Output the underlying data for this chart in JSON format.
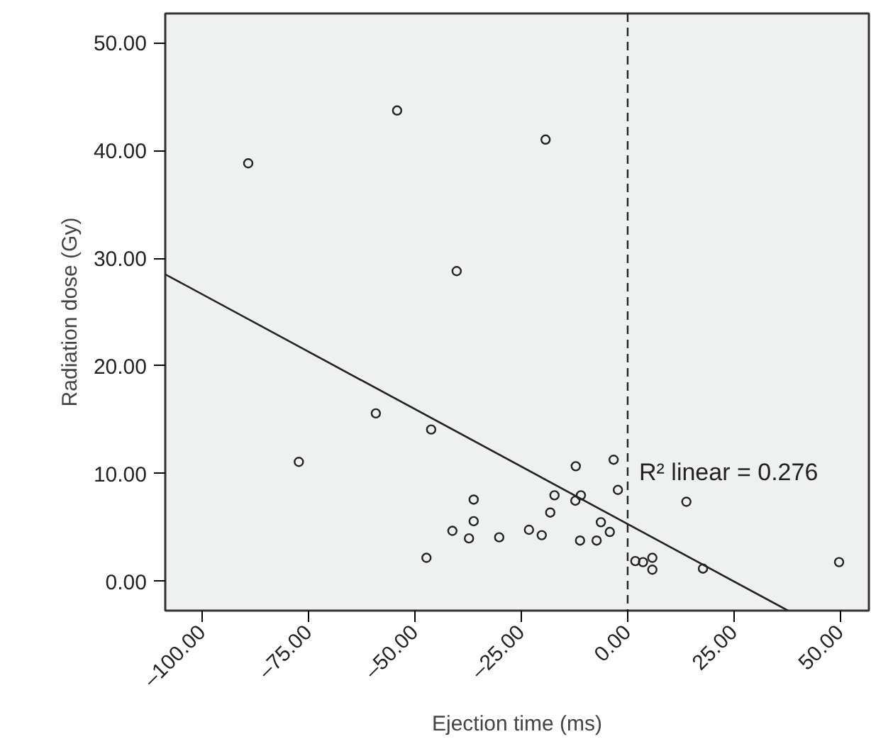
{
  "chart_data": {
    "type": "scatter",
    "xlabel": "Ejection time (ms)",
    "ylabel": "Radiation dose (Gy)",
    "xlim": [
      -108.7,
      56.7
    ],
    "ylim": [
      -2.7,
      52.7
    ],
    "xticks": [
      {
        "value": -100,
        "label": "–100.00"
      },
      {
        "value": -75,
        "label": "–75.00"
      },
      {
        "value": -50,
        "label": "–50.00"
      },
      {
        "value": -25,
        "label": "–25.00"
      },
      {
        "value": 0,
        "label": "0.00"
      },
      {
        "value": 25,
        "label": "25.00"
      },
      {
        "value": 50,
        "label": "50.00"
      }
    ],
    "yticks": [
      {
        "value": 0,
        "label": "0.00"
      },
      {
        "value": 10,
        "label": "10.00"
      },
      {
        "value": 20,
        "label": "20.00"
      },
      {
        "value": 30,
        "label": "30.00"
      },
      {
        "value": 40,
        "label": "40.00"
      },
      {
        "value": 50,
        "label": "50.00"
      }
    ],
    "grid": false,
    "marker": "circle",
    "series": [
      {
        "color": "#222222",
        "x": [
          -89.2,
          -54.2,
          -40.2,
          -19.3,
          -77.3,
          -59.2,
          -46.2,
          -47.3,
          -41.2,
          -37.3,
          -36.2,
          -36.2,
          -30.2,
          -23.2,
          -20.2,
          -18.2,
          -17.2,
          -12.2,
          -12.3,
          -11.0,
          -11.2,
          -7.3,
          -6.3,
          -4.2,
          -3.3,
          -2.3,
          1.8,
          3.6,
          5.8,
          5.8,
          13.8,
          17.7,
          49.7
        ],
        "values": [
          38.8,
          43.7,
          28.8,
          41.0,
          11.1,
          15.6,
          14.1,
          2.2,
          4.7,
          4.0,
          7.6,
          5.6,
          4.1,
          4.8,
          4.3,
          6.4,
          8.0,
          10.7,
          7.5,
          8.0,
          3.8,
          3.8,
          5.5,
          4.6,
          11.3,
          8.5,
          1.9,
          1.8,
          2.2,
          1.1,
          7.4,
          1.2,
          1.8
        ]
      },
      {
        "type": "line",
        "marker": "none",
        "color": "#222222",
        "x": [
          -108.7,
          37.7
        ],
        "values": [
          28.5,
          -2.7
        ]
      }
    ],
    "ref_lines": [
      {
        "axis": "x",
        "value": 0,
        "line_style": "dashed",
        "color": "#222222"
      }
    ],
    "annotations": [
      "R² linear = 0.276"
    ]
  }
}
